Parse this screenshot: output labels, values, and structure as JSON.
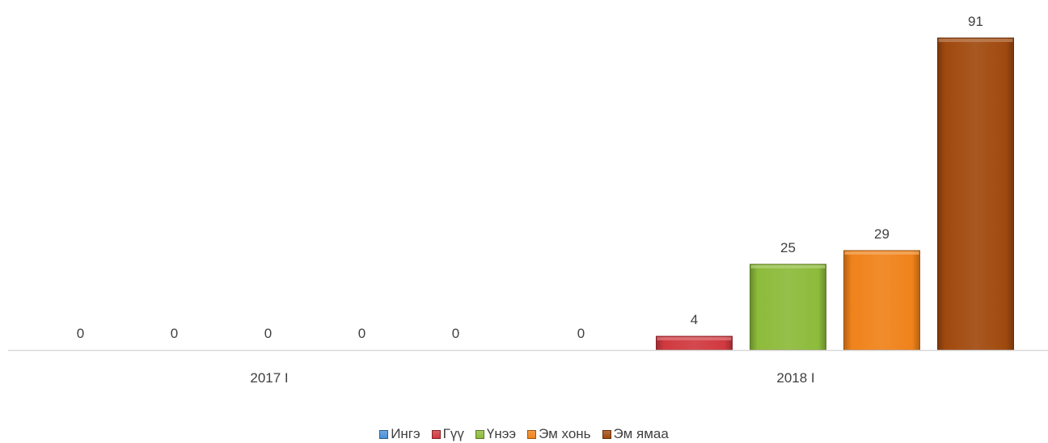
{
  "chart_data": {
    "type": "bar",
    "categories": [
      "2017 I",
      "2018 I"
    ],
    "series": [
      {
        "name": "Ингэ",
        "values": [
          0,
          0
        ],
        "color": "#4a90d9"
      },
      {
        "name": "Гүү",
        "values": [
          0,
          4
        ],
        "color": "#d0393f"
      },
      {
        "name": "Үнээ",
        "values": [
          0,
          25
        ],
        "color": "#8dbb3a"
      },
      {
        "name": "Эм хонь",
        "values": [
          0,
          29
        ],
        "color": "#f0821a"
      },
      {
        "name": "Эм ямаа",
        "values": [
          0,
          91
        ],
        "color": "#a0490e"
      }
    ],
    "data_labels": [
      [
        "0",
        "0",
        "0",
        "0",
        "0"
      ],
      [
        "0",
        "4",
        "25",
        "29",
        "91"
      ]
    ],
    "ylim": [
      0,
      91
    ],
    "grid": false,
    "legend_position": "bottom"
  }
}
